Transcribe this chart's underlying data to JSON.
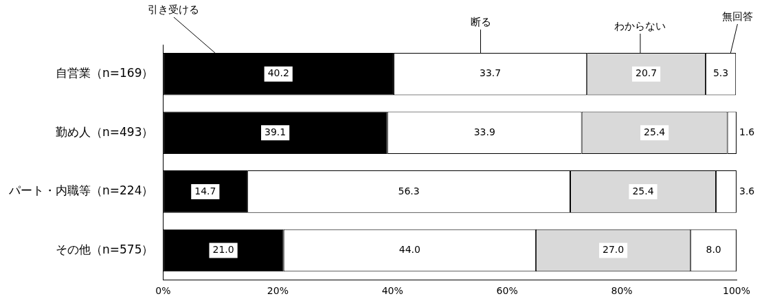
{
  "chart_data": {
    "type": "bar",
    "orientation": "horizontal",
    "stacked": true,
    "grid": false,
    "legend": false,
    "categories": [
      "自営業（n=169）",
      "勤め人（n=493）",
      "パート・内職等（n=224）",
      "その他（n=575）"
    ],
    "xlim": [
      0,
      100
    ],
    "xticks": [
      {
        "value": 0,
        "label": "0%"
      },
      {
        "value": 20,
        "label": "20%"
      },
      {
        "value": 40,
        "label": "40%"
      },
      {
        "value": 60,
        "label": "60%"
      },
      {
        "value": 80,
        "label": "80%"
      },
      {
        "value": 100,
        "label": "100%"
      }
    ],
    "series": [
      {
        "name": "引き受ける",
        "color": "#000000",
        "values": [
          40.2,
          39.1,
          14.7,
          21.0
        ],
        "value_labels": [
          "40.2",
          "39.1",
          "14.7",
          "21.0"
        ]
      },
      {
        "name": "断る",
        "color": "#ffffff",
        "values": [
          33.7,
          33.9,
          56.3,
          44.0
        ],
        "value_labels": [
          "33.7",
          "33.9",
          "56.3",
          "44.0"
        ]
      },
      {
        "name": "わからない",
        "color": "#d9d9d9",
        "values": [
          20.7,
          25.4,
          25.4,
          27.0
        ],
        "value_labels": [
          "20.7",
          "25.4",
          "25.4",
          "27.0"
        ]
      },
      {
        "name": "無回答",
        "color": "#ffffff",
        "values": [
          5.3,
          1.6,
          3.6,
          8.0
        ],
        "value_labels": [
          "5.3",
          "1.6",
          "3.6",
          "8.0"
        ]
      }
    ]
  }
}
